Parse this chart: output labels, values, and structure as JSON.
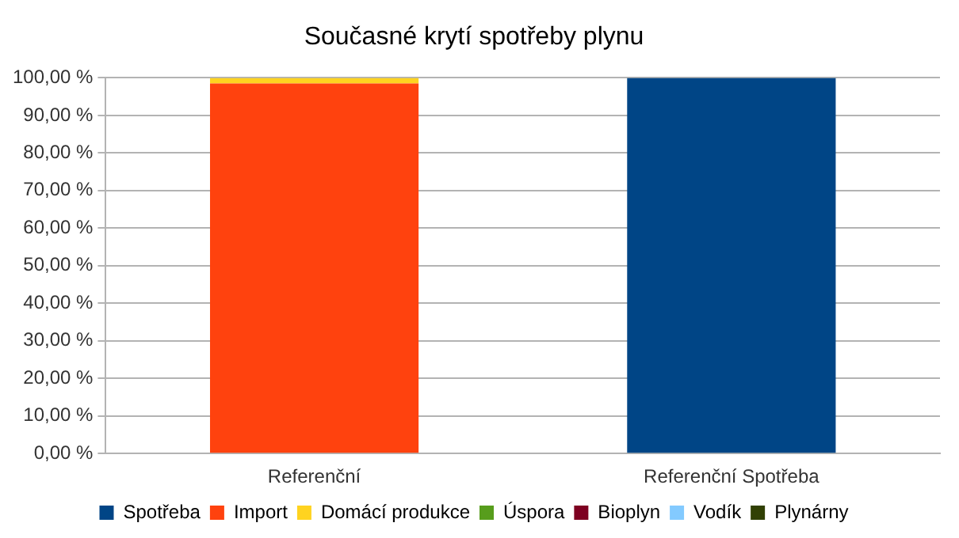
{
  "chart_data": {
    "type": "bar",
    "title": "Současné krytí spotřeby plynu",
    "stacked": true,
    "categories": [
      "Referenční",
      "Referenční Spotřeba"
    ],
    "series": [
      {
        "name": "Spotřeba",
        "color": "#004586",
        "values": [
          null,
          100
        ]
      },
      {
        "name": "Import",
        "color": "#ff420e",
        "values": [
          98.5,
          null
        ]
      },
      {
        "name": "Domácí produkce",
        "color": "#ffd320",
        "values": [
          1.5,
          null
        ]
      },
      {
        "name": "Úspora",
        "color": "#579d1c",
        "values": [
          null,
          null
        ]
      },
      {
        "name": "Bioplyn",
        "color": "#7e0021",
        "values": [
          null,
          null
        ]
      },
      {
        "name": "Vodík",
        "color": "#83caff",
        "values": [
          null,
          null
        ]
      },
      {
        "name": "Plynárny",
        "color": "#314004",
        "values": [
          null,
          null
        ]
      }
    ],
    "ylim": [
      0,
      100
    ],
    "yticks": [
      {
        "value": 0,
        "label": "0,00 %"
      },
      {
        "value": 10,
        "label": "10,00 %"
      },
      {
        "value": 20,
        "label": "20,00 %"
      },
      {
        "value": 30,
        "label": "30,00 %"
      },
      {
        "value": 40,
        "label": "40,00 %"
      },
      {
        "value": 50,
        "label": "50,00 %"
      },
      {
        "value": 60,
        "label": "60,00 %"
      },
      {
        "value": 70,
        "label": "70,00 %"
      },
      {
        "value": 80,
        "label": "80,00 %"
      },
      {
        "value": 90,
        "label": "90,00 %"
      },
      {
        "value": 100,
        "label": "100,00 %"
      }
    ],
    "grid": "y",
    "legend": "bottom"
  }
}
